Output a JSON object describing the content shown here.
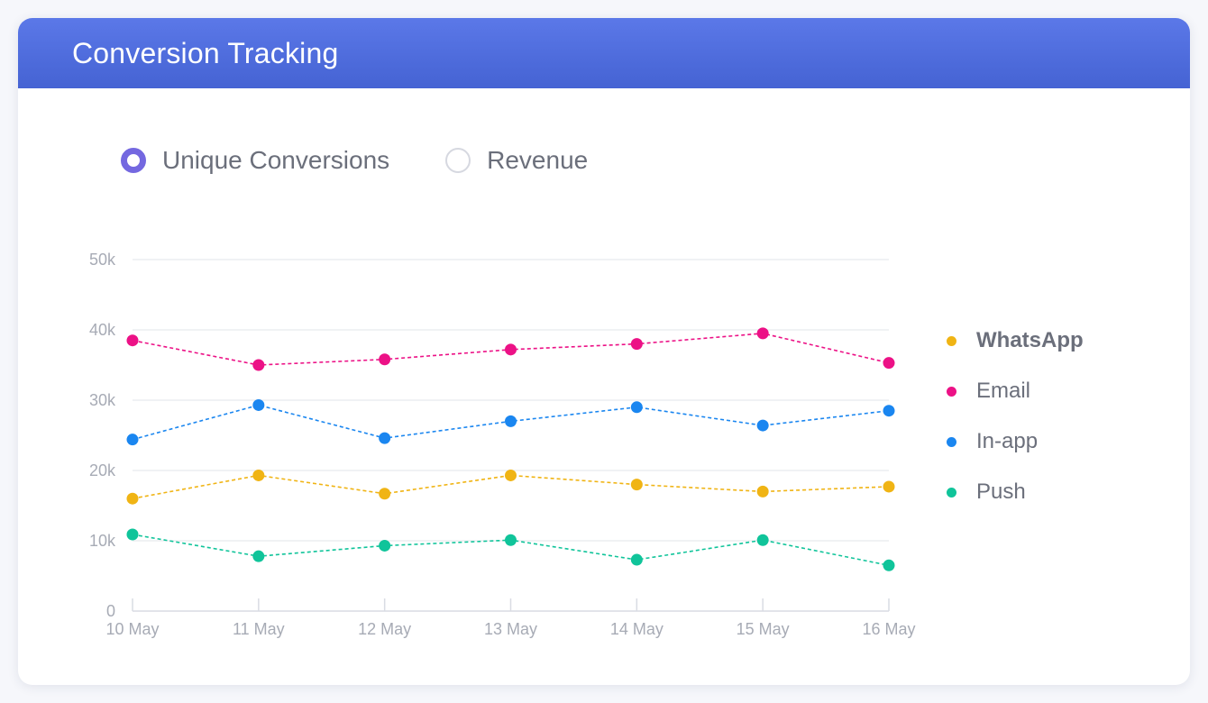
{
  "header": {
    "title": "Conversion Tracking"
  },
  "toggle": {
    "options": [
      {
        "label": "Unique Conversions",
        "selected": true
      },
      {
        "label": "Revenue",
        "selected": false
      }
    ]
  },
  "colors": {
    "WhatsApp": "#f0b414",
    "Email": "#ec1186",
    "In-app": "#1a86f0",
    "Push": "#10c49a",
    "accent": "#7468e0",
    "header": "#4f6fe0"
  },
  "chart_data": {
    "type": "line",
    "x": [
      "10 May",
      "11 May",
      "12 May",
      "13 May",
      "14 May",
      "15 May",
      "16 May"
    ],
    "y_ticks": [
      "0",
      "10k",
      "20k",
      "30k",
      "40k",
      "50k"
    ],
    "ylim": [
      0,
      50000
    ],
    "grid": true,
    "legend": "right",
    "series": [
      {
        "name": "WhatsApp",
        "values": [
          16000,
          19300,
          16700,
          19300,
          18000,
          17000,
          17700
        ]
      },
      {
        "name": "Email",
        "values": [
          38500,
          35000,
          35800,
          37200,
          38000,
          39500,
          35300
        ]
      },
      {
        "name": "In-app",
        "values": [
          24400,
          29300,
          24600,
          27000,
          29000,
          26400,
          28500
        ]
      },
      {
        "name": "Push",
        "values": [
          10900,
          7800,
          9300,
          10100,
          7300,
          10100,
          6500
        ]
      }
    ]
  }
}
